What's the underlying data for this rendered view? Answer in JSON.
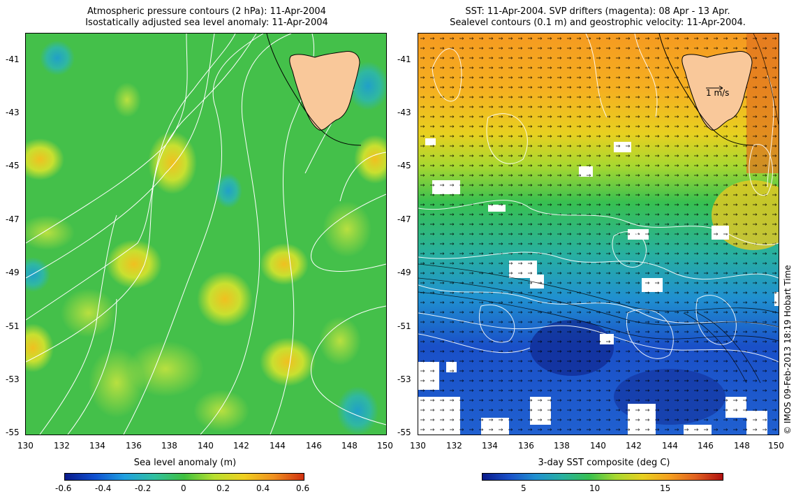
{
  "left_panel": {
    "title_line1": "Atmospheric pressure contours (2 hPa): 11-Apr-2004",
    "title_line2": "Isostatically adjusted sea level anomaly: 11-Apr-2004",
    "x_ticks": [
      "130",
      "132",
      "134",
      "136",
      "138",
      "140",
      "142",
      "144",
      "146",
      "148",
      "150"
    ],
    "y_ticks": [
      "-41",
      "-43",
      "-45",
      "-47",
      "-49",
      "-51",
      "-53",
      "-55"
    ],
    "colorbar_title": "Sea level anomaly (m)",
    "colorbar_labels": [
      "-0.6",
      "-0.4",
      "-0.2",
      "0",
      "0.2",
      "0.4",
      "0.6"
    ]
  },
  "right_panel": {
    "title_line1": "SST: 11-Apr-2004. SVP drifters (magenta): 08 Apr - 13 Apr.",
    "title_line2": "Sealevel contours (0.1 m) and geostrophic velocity: 11-Apr-2004.",
    "x_ticks": [
      "130",
      "132",
      "134",
      "136",
      "138",
      "140",
      "142",
      "144",
      "146",
      "148",
      "150"
    ],
    "y_ticks": [
      "-41",
      "-43",
      "-45",
      "-47",
      "-49",
      "-51",
      "-53",
      "-55"
    ],
    "velocity_scale_label": "1 m/s",
    "colorbar_title": "3-day SST composite (deg C)",
    "colorbar_labels": [
      "5",
      "10",
      "15"
    ]
  },
  "credit": "© IMOS 09-Feb-2013 18:19 Hobart Time",
  "colors": {
    "land": "#f9c89a",
    "sla_base": "#3fbf3f",
    "sst_warm": "#f5a623",
    "sst_cold": "#1e50c8",
    "contour": "#ffffff",
    "coast": "#000000"
  }
}
